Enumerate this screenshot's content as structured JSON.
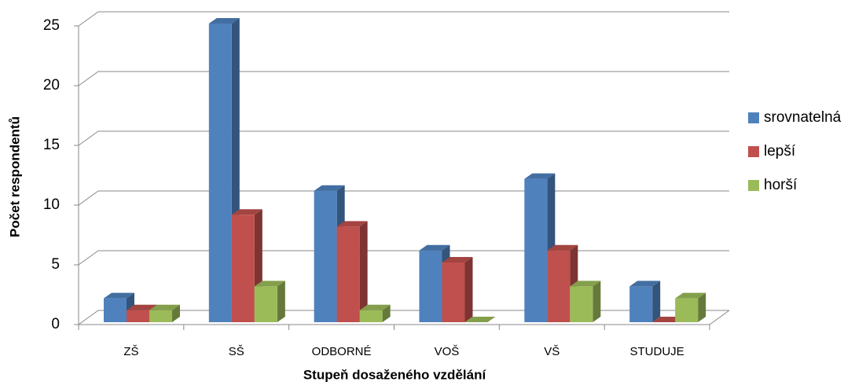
{
  "chart_data": {
    "type": "bar3d",
    "categories": [
      "ZŠ",
      "SŠ",
      "ODBORNÉ",
      "VOŠ",
      "VŠ",
      "STUDUJE"
    ],
    "series": [
      {
        "name": "srovnatelná",
        "color": "#4f81bd",
        "values": [
          2,
          25,
          11,
          6,
          12,
          3
        ]
      },
      {
        "name": "lepší",
        "color": "#c0504d",
        "values": [
          1,
          9,
          8,
          5,
          6,
          0
        ]
      },
      {
        "name": "horší",
        "color": "#9bbb59",
        "values": [
          1,
          3,
          1,
          0,
          3,
          2
        ]
      }
    ],
    "ylim": [
      0,
      25
    ],
    "yticks": [
      0,
      5,
      10,
      15,
      20,
      25
    ],
    "grid": true,
    "ylabel": "Počet respondentů",
    "xlabel": "Stupeň dosaženého vzdělání",
    "legend": "right"
  }
}
